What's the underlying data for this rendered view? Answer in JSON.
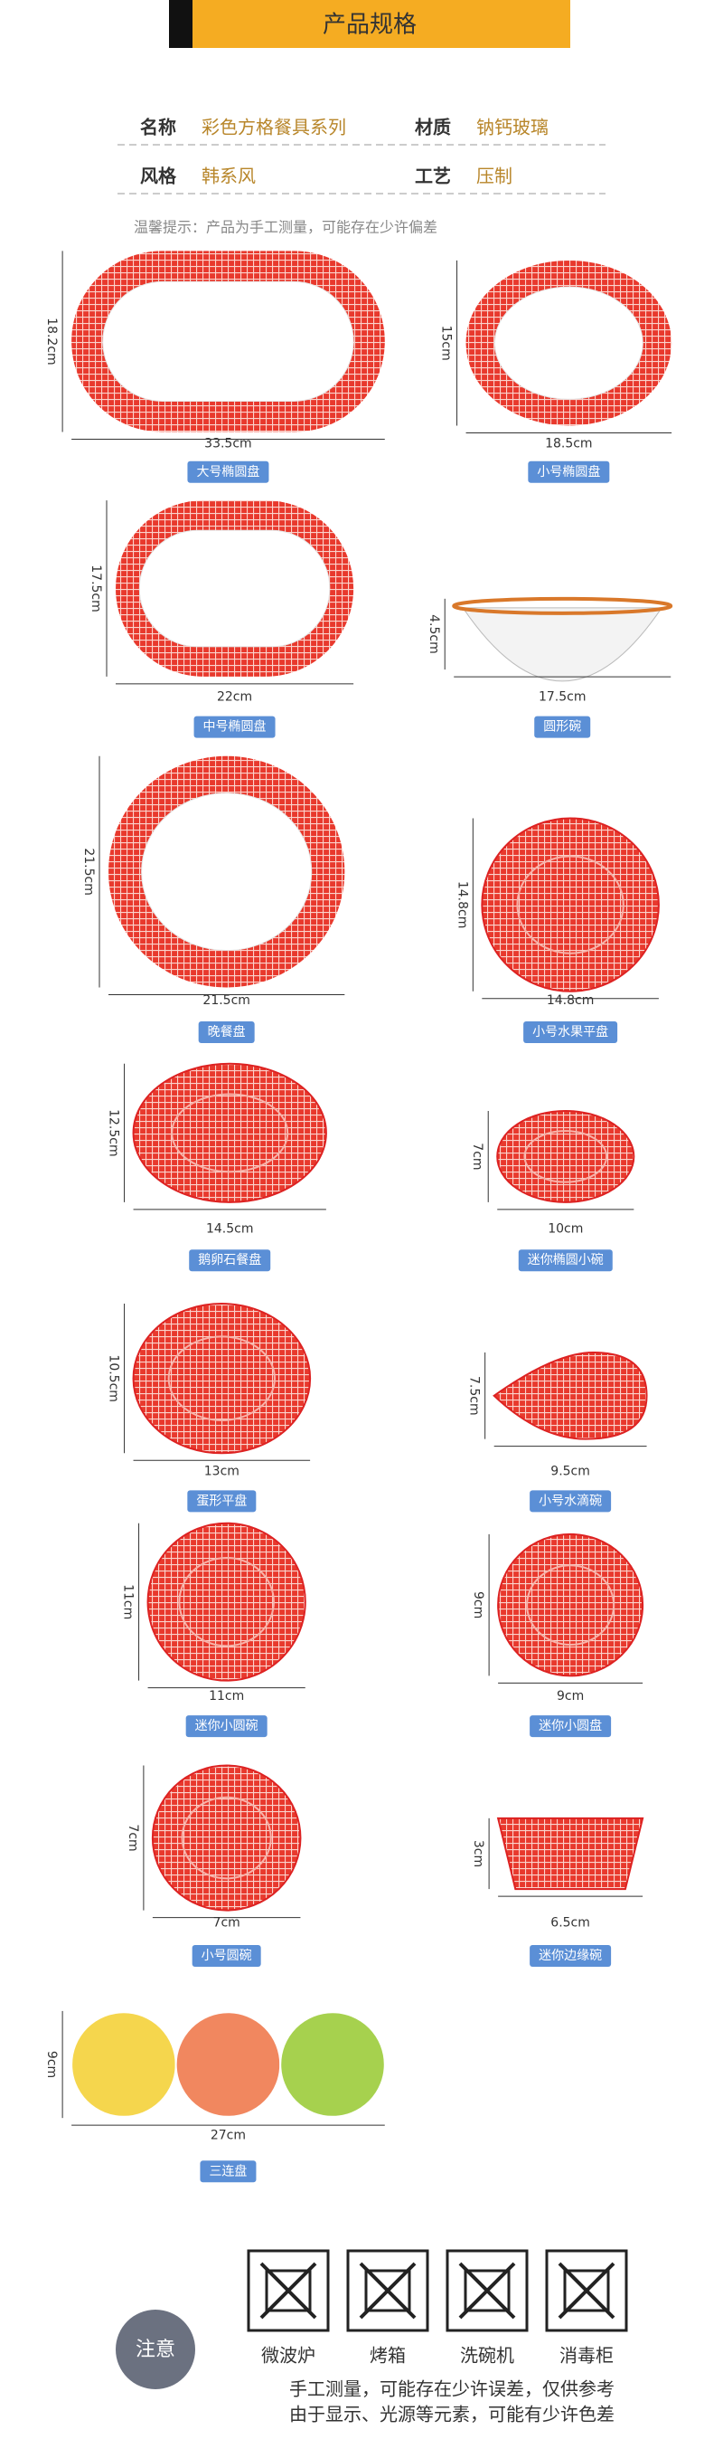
{
  "header": {
    "title": "产品规格"
  },
  "specs": [
    {
      "label": "名称",
      "value": "彩色方格餐具系列"
    },
    {
      "label": "材质",
      "value": "钠钙玻璃"
    },
    {
      "label": "风格",
      "value": "韩系风"
    },
    {
      "label": "工艺",
      "value": "压制"
    }
  ],
  "note": "温馨提示：产品为手工测量，可能存在少许偏差",
  "products": [
    {
      "name": "大号椭圆盘",
      "height": "18.2cm",
      "width": "33.5cm"
    },
    {
      "name": "小号椭圆盘",
      "height": "15cm",
      "width": "18.5cm"
    },
    {
      "name": "中号椭圆盘",
      "height": "17.5cm",
      "width": "22cm"
    },
    {
      "name": "圆形碗",
      "height": "4.5cm",
      "width": "17.5cm"
    },
    {
      "name": "晚餐盘",
      "height": "21.5cm",
      "width": "21.5cm"
    },
    {
      "name": "小号水果平盘",
      "height": "14.8cm",
      "width": "14.8cm"
    },
    {
      "name": "鹅卵石餐盘",
      "height": "12.5cm",
      "width": "14.5cm"
    },
    {
      "name": "迷你椭圆小碗",
      "height": "7cm",
      "width": "10cm"
    },
    {
      "name": "蛋形平盘",
      "height": "10.5cm",
      "width": "13cm"
    },
    {
      "name": "小号水滴碗",
      "height": "7.5cm",
      "width": "9.5cm"
    },
    {
      "name": "迷你小圆碗",
      "height": "11cm",
      "width": "11cm"
    },
    {
      "name": "迷你小圆盘",
      "height": "9cm",
      "width": "9cm"
    },
    {
      "name": "小号圆碗",
      "height": "7cm",
      "width": "7cm"
    },
    {
      "name": "迷你边缘碗",
      "height": "3cm",
      "width": "6.5cm"
    },
    {
      "name": "三连盘",
      "height": "9cm",
      "width": "27cm"
    }
  ],
  "care": {
    "badge": "注意",
    "icons": [
      "微波炉",
      "烤箱",
      "洗碗机",
      "消毒柜"
    ],
    "lines": [
      "手工测量，可能存在少许误差，仅供参考",
      "由于显示、光源等元素，可能有少许色差"
    ]
  }
}
